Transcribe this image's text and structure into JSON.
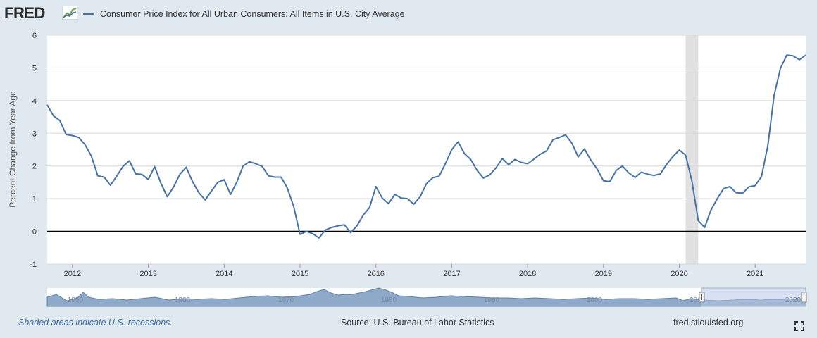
{
  "header": {
    "logo_text": "FRED",
    "logo_icon": "fred-graph-icon",
    "series_title": "Consumer Price Index for All Urban Consumers: All Items in U.S. City Average"
  },
  "chart_data": {
    "type": "line",
    "title": "",
    "ylabel": "Percent Change from Year Ago",
    "xlabel": "",
    "ylim": [
      -1,
      6
    ],
    "yticks": [
      "-1",
      "0",
      "1",
      "2",
      "3",
      "4",
      "5",
      "6"
    ],
    "xticks": [
      "2012",
      "2013",
      "2014",
      "2015",
      "2016",
      "2017",
      "2018",
      "2019",
      "2020",
      "2021"
    ],
    "xlim": [
      "2011-09",
      "2021-09"
    ],
    "grid": "horizontal",
    "zero_line": true,
    "recession_shading": [
      {
        "start": "2020-02",
        "end": "2020-04"
      }
    ],
    "series": [
      {
        "name": "Consumer Price Index for All Urban Consumers: All Items in U.S. City Average",
        "color": "#4572a7",
        "x": [
          "2011-09",
          "2011-10",
          "2011-11",
          "2011-12",
          "2012-01",
          "2012-02",
          "2012-03",
          "2012-04",
          "2012-05",
          "2012-06",
          "2012-07",
          "2012-08",
          "2012-09",
          "2012-10",
          "2012-11",
          "2012-12",
          "2013-01",
          "2013-02",
          "2013-03",
          "2013-04",
          "2013-05",
          "2013-06",
          "2013-07",
          "2013-08",
          "2013-09",
          "2013-10",
          "2013-11",
          "2013-12",
          "2014-01",
          "2014-02",
          "2014-03",
          "2014-04",
          "2014-05",
          "2014-06",
          "2014-07",
          "2014-08",
          "2014-09",
          "2014-10",
          "2014-11",
          "2014-12",
          "2015-01",
          "2015-02",
          "2015-03",
          "2015-04",
          "2015-05",
          "2015-06",
          "2015-07",
          "2015-08",
          "2015-09",
          "2015-10",
          "2015-11",
          "2015-12",
          "2016-01",
          "2016-02",
          "2016-03",
          "2016-04",
          "2016-05",
          "2016-06",
          "2016-07",
          "2016-08",
          "2016-09",
          "2016-10",
          "2016-11",
          "2016-12",
          "2017-01",
          "2017-02",
          "2017-03",
          "2017-04",
          "2017-05",
          "2017-06",
          "2017-07",
          "2017-08",
          "2017-09",
          "2017-10",
          "2017-11",
          "2017-12",
          "2018-01",
          "2018-02",
          "2018-03",
          "2018-04",
          "2018-05",
          "2018-06",
          "2018-07",
          "2018-08",
          "2018-09",
          "2018-10",
          "2018-11",
          "2018-12",
          "2019-01",
          "2019-02",
          "2019-03",
          "2019-04",
          "2019-05",
          "2019-06",
          "2019-07",
          "2019-08",
          "2019-09",
          "2019-10",
          "2019-11",
          "2019-12",
          "2020-01",
          "2020-02",
          "2020-03",
          "2020-04",
          "2020-05",
          "2020-06",
          "2020-07",
          "2020-08",
          "2020-09",
          "2020-10",
          "2020-11",
          "2020-12",
          "2021-01",
          "2021-02",
          "2021-03",
          "2021-04",
          "2021-05",
          "2021-06",
          "2021-07",
          "2021-08",
          "2021-09"
        ],
        "values": [
          3.87,
          3.53,
          3.39,
          2.96,
          2.93,
          2.87,
          2.65,
          2.3,
          1.7,
          1.66,
          1.41,
          1.69,
          1.99,
          2.16,
          1.76,
          1.74,
          1.59,
          1.98,
          1.47,
          1.06,
          1.36,
          1.75,
          1.96,
          1.52,
          1.18,
          0.96,
          1.24,
          1.5,
          1.58,
          1.13,
          1.51,
          2.0,
          2.13,
          2.07,
          1.99,
          1.7,
          1.66,
          1.66,
          1.32,
          0.76,
          -0.09,
          0.0,
          -0.07,
          -0.2,
          0.04,
          0.12,
          0.17,
          0.2,
          -0.04,
          0.17,
          0.5,
          0.73,
          1.37,
          1.02,
          0.85,
          1.13,
          1.02,
          1.0,
          0.83,
          1.06,
          1.46,
          1.64,
          1.69,
          2.07,
          2.5,
          2.74,
          2.38,
          2.2,
          1.87,
          1.63,
          1.73,
          1.94,
          2.23,
          2.04,
          2.2,
          2.11,
          2.07,
          2.21,
          2.36,
          2.46,
          2.8,
          2.87,
          2.95,
          2.7,
          2.28,
          2.52,
          2.18,
          1.91,
          1.55,
          1.52,
          1.86,
          2.0,
          1.79,
          1.65,
          1.81,
          1.75,
          1.71,
          1.76,
          2.05,
          2.29,
          2.49,
          2.33,
          1.54,
          0.33,
          0.12,
          0.65,
          1.0,
          1.31,
          1.37,
          1.18,
          1.17,
          1.36,
          1.4,
          1.68,
          2.62,
          4.16,
          4.99,
          5.39,
          5.37,
          5.25,
          5.39
        ]
      }
    ]
  },
  "navigator": {
    "labels": [
      "1950",
      "1960",
      "1970",
      "1980",
      "1990",
      "2000",
      "2010",
      "2020"
    ]
  },
  "footer": {
    "recession_note": "Shaded areas indicate U.S. recessions.",
    "source": "Source: U.S. Bureau of Labor Statistics",
    "url": "fred.stlouisfed.org",
    "fullscreen_icon": "fullscreen-icon"
  },
  "colors": {
    "background": "#e1e9f0",
    "plot_bg": "#ffffff",
    "line": "#4572a7",
    "recession": "#e1e1e1",
    "grid": "#d8d8d8",
    "link": "#3b6ea5"
  }
}
